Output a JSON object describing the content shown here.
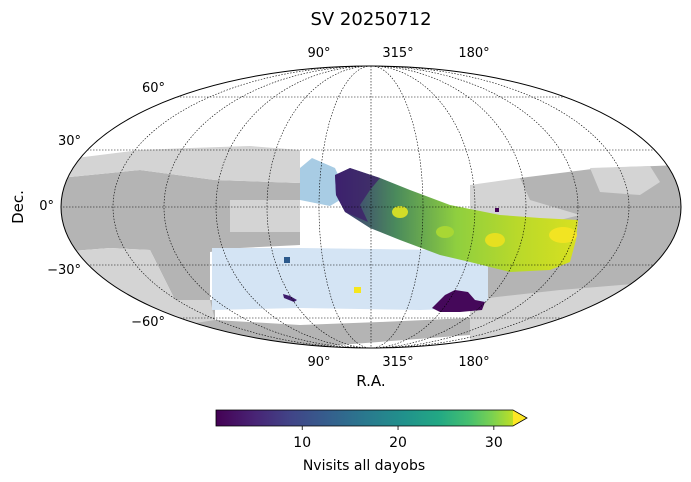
{
  "chart_data": {
    "type": "heatmap",
    "projection": "mollweide",
    "title": "SV 20250712",
    "xlabel": "R.A.",
    "ylabel": "Dec.",
    "ra_tick_labels": [
      "90°",
      "315°",
      "180°"
    ],
    "dec_tick_labels": [
      "60°",
      "30°",
      "0°",
      "−30°",
      "−60°"
    ],
    "dec_ticks": [
      60,
      30,
      0,
      -30,
      -60
    ],
    "grid": true,
    "colorbar": {
      "label": "Nvisits all dayobs",
      "colormap": "viridis",
      "range": [
        1,
        32
      ],
      "extend": "max",
      "ticks": [
        10,
        20,
        30
      ],
      "tick_labels": [
        "10",
        "20",
        "30"
      ]
    },
    "footprint_regions": [
      {
        "name": "survey footprint",
        "color": "#b4b4b4"
      },
      {
        "name": "secondary footprint",
        "color": "#d4d4d4"
      },
      {
        "name": "planned fields",
        "color": "#d4e4f4"
      },
      {
        "name": "planned fields",
        "color": "#a8cce4"
      }
    ],
    "visited_regions": [
      {
        "location": "main equatorial band",
        "nvisits_range": [
          1,
          32
        ]
      },
      {
        "location": "southern patch",
        "nvisits_range": [
          1,
          6
        ]
      },
      {
        "location": "small southern field",
        "nvisits_range": [
          30,
          32
        ]
      }
    ]
  }
}
